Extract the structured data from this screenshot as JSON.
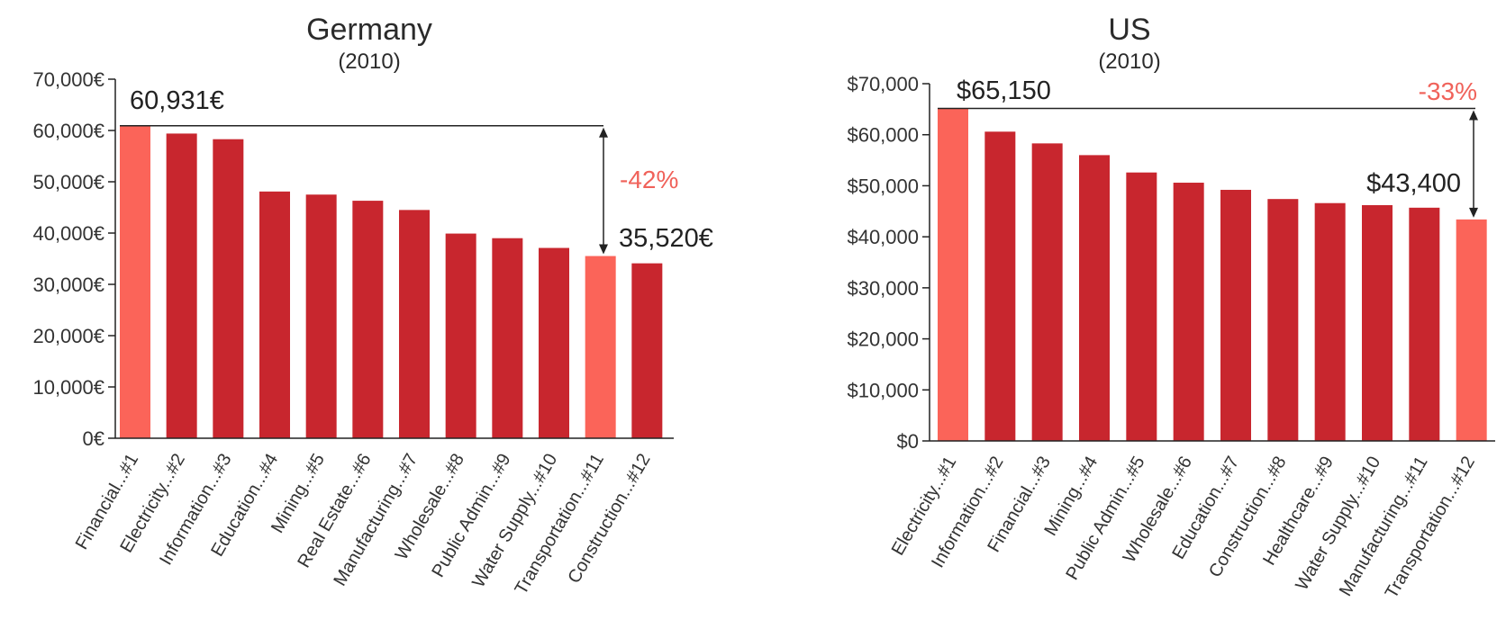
{
  "chart_data": [
    {
      "type": "bar",
      "title": "Germany",
      "subtitle": "(2010)",
      "categories": [
        "Financial...#1",
        "Electricity...#2",
        "Information...#3",
        "Education...#4",
        "Mining...#5",
        "Real Estate...#6",
        "Manufacturing...#7",
        "Wholesale...#8",
        "Public Admin...#9",
        "Water Supply...#10",
        "Transportation...#11",
        "Construction...#12"
      ],
      "values": [
        60931,
        59400,
        58300,
        48100,
        47500,
        46300,
        44500,
        39900,
        39000,
        37100,
        35520,
        34100
      ],
      "highlight": [
        0,
        10
      ],
      "ylim": [
        0,
        70000
      ],
      "yticks": [
        0,
        10000,
        20000,
        30000,
        40000,
        50000,
        60000,
        70000
      ],
      "ytick_labels": [
        "0€",
        "10,000€",
        "20,000€",
        "30,000€",
        "40,000€",
        "50,000€",
        "60,000€",
        "70,000€"
      ],
      "max_label": "60,931€",
      "min_label": "35,520€",
      "diff_label": "-42%",
      "colors": {
        "bar": "#c8262e",
        "highlight": "#fb6459",
        "diff": "#f0625a"
      }
    },
    {
      "type": "bar",
      "title": "US",
      "subtitle": "(2010)",
      "categories": [
        "Electricity...#1",
        "Information...#2",
        "Financial...#3",
        "Mining...#4",
        "Public Admin...#5",
        "Wholesale...#6",
        "Education...#7",
        "Construction...#8",
        "Healthcare...#9",
        "Water Supply...#10",
        "Manufacturing...#11",
        "Transportation...#12"
      ],
      "values": [
        65150,
        60600,
        58300,
        56000,
        52600,
        50600,
        49200,
        47400,
        46600,
        46200,
        45700,
        43400
      ],
      "highlight": [
        0,
        11
      ],
      "ylim": [
        0,
        70000
      ],
      "yticks": [
        0,
        10000,
        20000,
        30000,
        40000,
        50000,
        60000,
        70000
      ],
      "ytick_labels": [
        "$0",
        "$10,000",
        "$20,000",
        "$30,000",
        "$40,000",
        "$50,000",
        "$60,000",
        "$70,000"
      ],
      "max_label": "$65,150",
      "min_label": "$43,400",
      "diff_label": "-33%",
      "colors": {
        "bar": "#c8262e",
        "highlight": "#fb6459",
        "diff": "#f0625a"
      }
    }
  ]
}
